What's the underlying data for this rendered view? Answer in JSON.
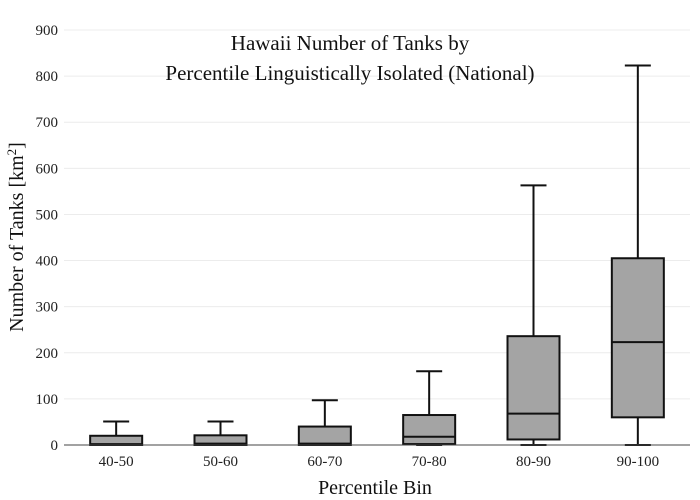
{
  "chart_data": {
    "type": "box",
    "title_lines": [
      "Hawaii Number of Tanks by",
      "Percentile Linguistically Isolated (National)"
    ],
    "xlabel": "Percentile Bin",
    "ylabel": "Number of Tanks  [km",
    "ylabel_sup": "2",
    "ylabel_end": "]",
    "ylim": [
      0,
      900
    ],
    "yticks": [
      0,
      100,
      200,
      300,
      400,
      500,
      600,
      700,
      800,
      900
    ],
    "grid": true,
    "categories": [
      "40-50",
      "50-60",
      "60-70",
      "70-80",
      "80-90",
      "90-100"
    ],
    "boxes": [
      {
        "category": "40-50",
        "min": 0,
        "q1": 0,
        "median": 2,
        "q3": 20,
        "max": 51
      },
      {
        "category": "50-60",
        "min": 0,
        "q1": 0,
        "median": 3,
        "q3": 21,
        "max": 51
      },
      {
        "category": "60-70",
        "min": 0,
        "q1": 0,
        "median": 3,
        "q3": 40,
        "max": 97
      },
      {
        "category": "70-80",
        "min": 0,
        "q1": 2,
        "median": 18,
        "q3": 65,
        "max": 160
      },
      {
        "category": "80-90",
        "min": 0,
        "q1": 12,
        "median": 68,
        "q3": 236,
        "max": 563
      },
      {
        "category": "90-100",
        "min": 0,
        "q1": 60,
        "median": 223,
        "q3": 405,
        "max": 823
      }
    ],
    "colors": {
      "box_fill": "#a4a4a4",
      "stroke": "#111111",
      "grid": "#ececec",
      "axis": "#444444"
    }
  }
}
